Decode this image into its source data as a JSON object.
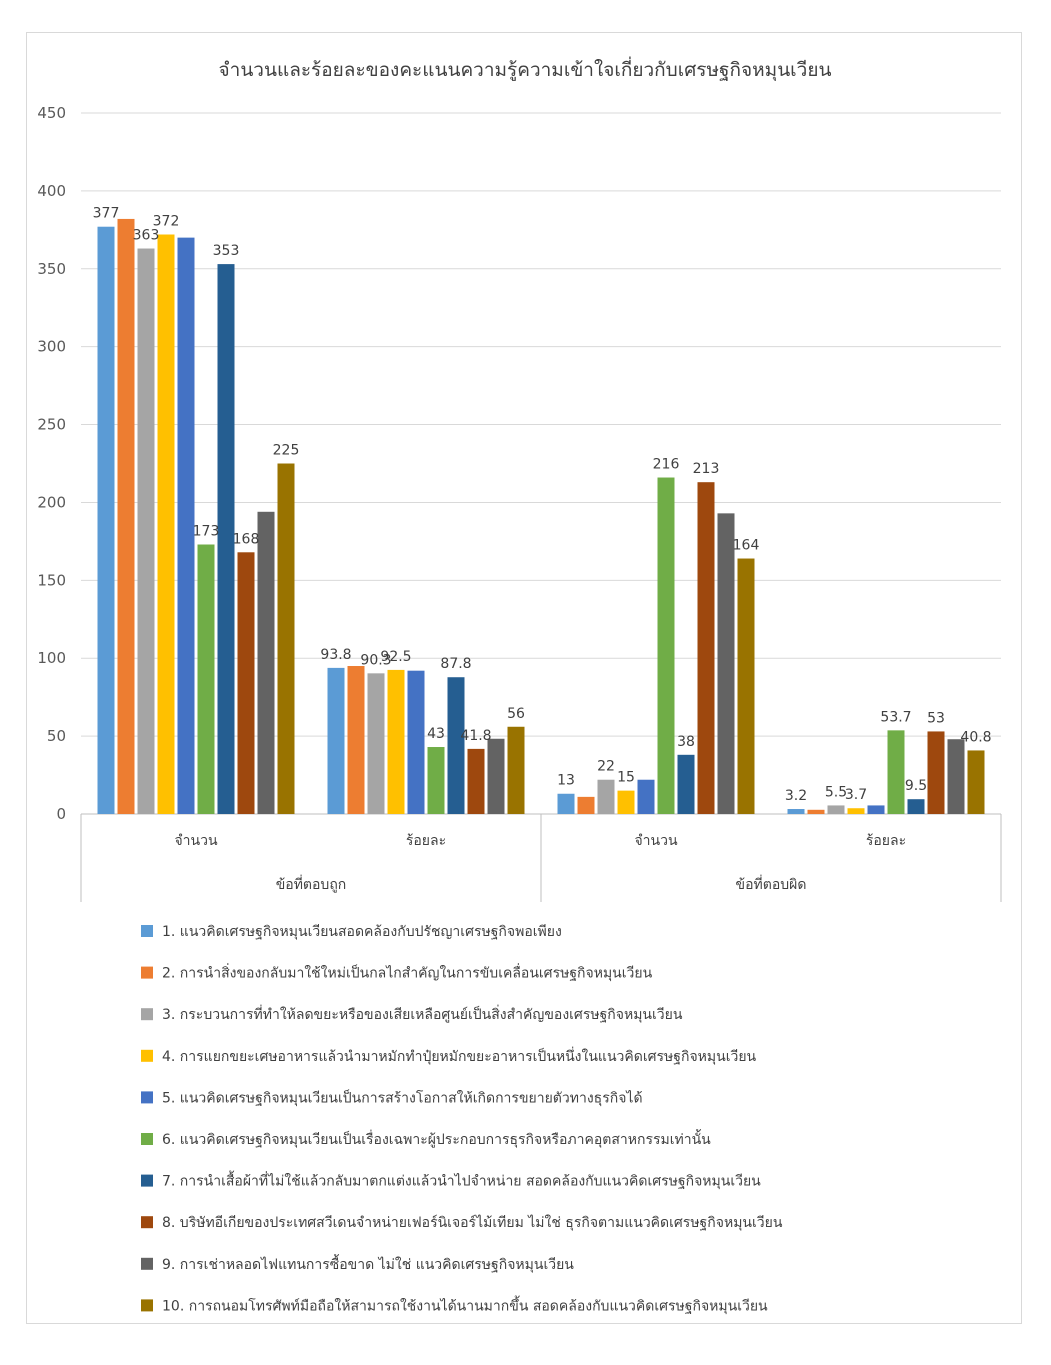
{
  "chart_data": {
    "type": "bar",
    "title": "จำนวนและร้อยละของคะแนนความรู้ความเข้าใจเกี่ยวกับเศรษฐกิจหมุนเวียน",
    "ylim": [
      0,
      450
    ],
    "yticks": [
      0,
      50,
      100,
      150,
      200,
      250,
      300,
      350,
      400,
      450
    ],
    "ytick_labels": [
      "0",
      "50",
      "100",
      "150",
      "200",
      "250",
      "300",
      "350",
      "400",
      "450"
    ],
    "grid": true,
    "legend_position": "bottom",
    "groups": [
      {
        "label": "ข้อที่ตอบถูก",
        "categories": [
          "จำนวน",
          "ร้อยละ"
        ]
      },
      {
        "label": "ข้อที่ตอบผิด",
        "categories": [
          "จำนวน",
          "ร้อยละ"
        ]
      }
    ],
    "categories": [
      "จำนวน",
      "ร้อยละ",
      "จำนวน",
      "ร้อยละ"
    ],
    "series": [
      {
        "name": "1.  แนวคิดเศรษฐกิจหมุนเวียนสอดคล้องกับปรัชญาเศรษฐกิจพอเพียง",
        "color": "#5b9bd5",
        "values": [
          377,
          93.8,
          13,
          3.2
        ],
        "labels": [
          "377",
          "93.8",
          "13",
          "3.2"
        ]
      },
      {
        "name": "2.  การนำสิ่งของกลับมาใช้ใหม่เป็นกลไกสำคัญในการขับเคลื่อนเศรษฐกิจหมุนเวียน",
        "color": "#ed7d31",
        "values": [
          382,
          95,
          11,
          2.7
        ],
        "labels": [
          "",
          "",
          "",
          ""
        ]
      },
      {
        "name": "3.  กระบวนการที่ทำให้ลดขยะหรือของเสียเหลือศูนย์เป็นสิ่งสำคัญของเศรษฐกิจหมุนเวียน",
        "color": "#a5a5a5",
        "values": [
          363,
          90.3,
          22,
          5.5
        ],
        "labels": [
          "363",
          "90.3",
          "22",
          "5.5"
        ]
      },
      {
        "name": "4.  การแยกขยะเศษอาหารแล้วนำมาหมักทำปุ๋ยหมักขยะอาหารเป็นหนึ่งในแนวคิดเศรษฐกิจหมุนเวียน",
        "color": "#ffc000",
        "values": [
          372,
          92.5,
          15,
          3.7
        ],
        "labels": [
          "372",
          "92.5",
          "15",
          "3.7"
        ]
      },
      {
        "name": "5.  แนวคิดเศรษฐกิจหมุนเวียนเป็นการสร้างโอกาสให้เกิดการขยายตัวทางธุรกิจได้",
        "color": "#4472c4",
        "values": [
          370,
          92,
          22,
          5.5
        ],
        "labels": [
          "",
          "",
          "",
          ""
        ]
      },
      {
        "name": "6.  แนวคิดเศรษฐกิจหมุนเวียนเป็นเรื่องเฉพาะผู้ประกอบการธุรกิจหรือภาคอุตสาหกรรมเท่านั้น",
        "color": "#70ad47",
        "values": [
          173,
          43,
          216,
          53.7
        ],
        "labels": [
          "173",
          "43",
          "216",
          "53.7"
        ]
      },
      {
        "name": "7.  การนำเสื้อผ้าที่ไม่ใช้แล้วกลับมาตกแต่งแล้วนำไปจำหน่าย สอดคล้องกับแนวคิดเศรษฐกิจหมุนเวียน",
        "color": "#255e91",
        "values": [
          353,
          87.8,
          38,
          9.5
        ],
        "labels": [
          "353",
          "87.8",
          "38",
          "9.5"
        ]
      },
      {
        "name": "8.  บริษัทอีเกียของประเทศสวีเดนจำหน่ายเฟอร์นิเจอร์ไม้เทียม ไม่ใช่ ธุรกิจตามแนวคิดเศรษฐกิจหมุนเวียน",
        "color": "#9e480e",
        "values": [
          168,
          41.8,
          213,
          53
        ],
        "labels": [
          "168",
          "41.8",
          "213",
          "53"
        ]
      },
      {
        "name": "9.  การเช่าหลอดไฟแทนการซื้อขาด ไม่ใช่ แนวคิดเศรษฐกิจหมุนเวียน",
        "color": "#636363",
        "values": [
          194,
          48.3,
          193,
          48
        ],
        "labels": [
          "",
          "",
          "",
          ""
        ]
      },
      {
        "name": "10. การถนอมโทรศัพท์มือถือให้สามารถใช้งานได้นานมากขึ้น สอดคล้องกับแนวคิดเศรษฐกิจหมุนเวียน",
        "color": "#997300",
        "values": [
          225,
          56,
          164,
          40.8
        ],
        "labels": [
          "225",
          "56",
          "164",
          "40.8"
        ]
      }
    ]
  }
}
